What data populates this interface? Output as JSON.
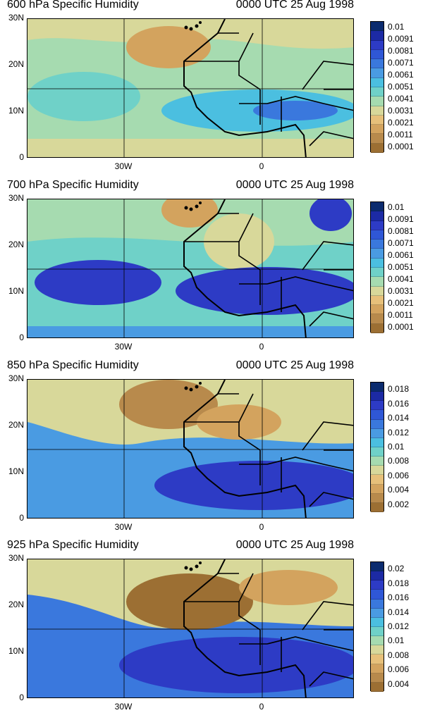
{
  "panels": [
    {
      "title": "600 hPa Specific Humidity",
      "time": "0000 UTC 25 Aug 1998",
      "yticks": [
        "30N",
        "20N",
        "10N",
        "0"
      ],
      "xticks": [
        "30W",
        "0"
      ],
      "colorbar_labels": [
        "0.01",
        "0.0091",
        "0.0081",
        "0.0071",
        "0.0061",
        "0.0051",
        "0.0041",
        "0.0031",
        "0.0021",
        "0.0011",
        "0.0001"
      ],
      "colorbar_colors": [
        "#0b2b6e",
        "#1c2aa4",
        "#2d3bc5",
        "#2f57d6",
        "#3a78dd",
        "#4a9be2",
        "#4bbfe0",
        "#6fd1c8",
        "#a6dbb0",
        "#d8d89a",
        "#e7c07a",
        "#d3a35e",
        "#b88a4c",
        "#9c6f33"
      ],
      "dominant": "moist"
    },
    {
      "title": "700 hPa Specific Humidity",
      "time": "0000 UTC 25 Aug 1998",
      "yticks": [
        "30N",
        "20N",
        "10N",
        "0"
      ],
      "xticks": [
        "30W",
        "0"
      ],
      "colorbar_labels": [
        "0.01",
        "0.0091",
        "0.0081",
        "0.0071",
        "0.0061",
        "0.0051",
        "0.0041",
        "0.0031",
        "0.0021",
        "0.0011",
        "0.0001"
      ],
      "colorbar_colors": [
        "#0b2b6e",
        "#1c2aa4",
        "#2d3bc5",
        "#2f57d6",
        "#3a78dd",
        "#4a9be2",
        "#4bbfe0",
        "#6fd1c8",
        "#a6dbb0",
        "#d8d89a",
        "#e7c07a",
        "#d3a35e",
        "#b88a4c",
        "#9c6f33"
      ],
      "dominant": "very-moist"
    },
    {
      "title": "850 hPa Specific Humidity",
      "time": "0000 UTC 25 Aug 1998",
      "yticks": [
        "30N",
        "20N",
        "10N",
        "0"
      ],
      "xticks": [
        "30W",
        "0"
      ],
      "colorbar_labels": [
        "0.018",
        "0.016",
        "0.014",
        "0.012",
        "0.01",
        "0.008",
        "0.006",
        "0.004",
        "0.002"
      ],
      "colorbar_colors": [
        "#0b2b6e",
        "#1c2aa4",
        "#2d3bc5",
        "#2f57d6",
        "#3a78dd",
        "#4a9be2",
        "#4bbfe0",
        "#6fd1c8",
        "#a6dbb0",
        "#d8d89a",
        "#e7c07a",
        "#d3a35e",
        "#b88a4c",
        "#9c6f33"
      ],
      "dominant": "dry-north"
    },
    {
      "title": "925 hPa Specific Humidity",
      "time": "0000 UTC 25 Aug 1998",
      "yticks": [
        "30N",
        "20N",
        "10N",
        "0"
      ],
      "xticks": [
        "30W",
        "0"
      ],
      "colorbar_labels": [
        "0.02",
        "0.018",
        "0.016",
        "0.014",
        "0.012",
        "0.01",
        "0.008",
        "0.006",
        "0.004"
      ],
      "colorbar_colors": [
        "#0b2b6e",
        "#1c2aa4",
        "#2d3bc5",
        "#2f57d6",
        "#3a78dd",
        "#4a9be2",
        "#4bbfe0",
        "#6fd1c8",
        "#a6dbb0",
        "#d8d89a",
        "#e7c07a",
        "#d3a35e",
        "#b88a4c",
        "#9c6f33"
      ],
      "dominant": "dry-north-strong"
    }
  ]
}
